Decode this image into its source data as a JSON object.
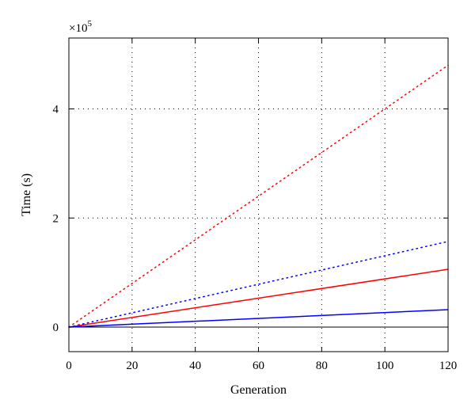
{
  "chart_data": {
    "type": "line",
    "xlabel": "Generation",
    "ylabel": "Time (s)",
    "y_exponent_label": "×10",
    "y_exponent_power": "5",
    "xlim": [
      0,
      120
    ],
    "ylim": [
      -0.45,
      5.3
    ],
    "y_scale_factor": 100000,
    "x_ticks": [
      0,
      20,
      40,
      60,
      80,
      100,
      120
    ],
    "y_ticks": [
      0,
      2,
      4
    ],
    "grid": true,
    "series": [
      {
        "color": "#ff0000",
        "style": "dotted",
        "x": [
          0,
          120
        ],
        "y": [
          0,
          4.8
        ]
      },
      {
        "color": "#0000ff",
        "style": "dotted",
        "x": [
          0,
          120
        ],
        "y": [
          0,
          1.57
        ]
      },
      {
        "color": "#ff0000",
        "style": "solid",
        "x": [
          0,
          120
        ],
        "y": [
          0,
          1.06
        ]
      },
      {
        "color": "#0000ff",
        "style": "solid",
        "x": [
          0,
          120
        ],
        "y": [
          0,
          0.32
        ]
      }
    ]
  }
}
